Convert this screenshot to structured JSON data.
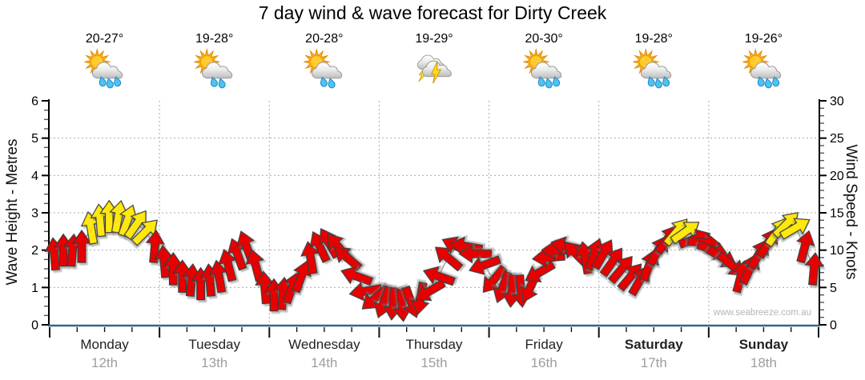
{
  "title": "7 day wind & wave forecast for Dirty Creek",
  "watermark": "www.seabreeze.com.au",
  "left_axis": {
    "label": "Wave Height - Metres",
    "ticks": [
      "0",
      "1",
      "2",
      "3",
      "4",
      "5",
      "6"
    ]
  },
  "right_axis": {
    "label": "Wind Speed - Knots",
    "ticks": [
      "0",
      "5",
      "10",
      "15",
      "20",
      "25",
      "30"
    ]
  },
  "days": [
    {
      "name": "Monday",
      "date": "12th",
      "temp": "20-27°",
      "icon": "showers",
      "drops": 3,
      "bold": false
    },
    {
      "name": "Tuesday",
      "date": "13th",
      "temp": "19-28°",
      "icon": "showers",
      "drops": 2,
      "bold": false
    },
    {
      "name": "Wednesday",
      "date": "14th",
      "temp": "20-28°",
      "icon": "showers",
      "drops": 2,
      "bold": false
    },
    {
      "name": "Thursday",
      "date": "15th",
      "temp": "19-29°",
      "icon": "storm",
      "drops": 0,
      "bold": false
    },
    {
      "name": "Friday",
      "date": "16th",
      "temp": "20-30°",
      "icon": "showers",
      "drops": 3,
      "bold": false
    },
    {
      "name": "Saturday",
      "date": "17th",
      "temp": "19-28°",
      "icon": "showers",
      "drops": 3,
      "bold": true
    },
    {
      "name": "Sunday",
      "date": "18th",
      "temp": "19-26°",
      "icon": "showers",
      "drops": 3,
      "bold": true
    }
  ],
  "colors": {
    "arrow_red": "#e80000",
    "arrow_yellow": "#ffe80a",
    "arrow_outline": "#3a3a3a",
    "baseline_blue": "#336688",
    "grid": "#aaaaaa",
    "trend_line": "#9b9b9b",
    "day_label": "#222222",
    "date_label": "#9e9e9e"
  },
  "chart_data": {
    "type": "wind-arrow-series",
    "title": "7 day wind & wave forecast for Dirty Creek",
    "categories": [
      "Monday 12th",
      "Tuesday 13th",
      "Wednesday 14th",
      "Thursday 15th",
      "Friday 16th",
      "Saturday 17th",
      "Sunday 18th"
    ],
    "left_axis": {
      "label": "Wave Height - Metres",
      "range": [
        0,
        6
      ],
      "gridlines_at": [
        1,
        2,
        3,
        4,
        5
      ]
    },
    "right_axis": {
      "label": "Wind Speed - Knots",
      "range": [
        0,
        30
      ],
      "gridlines_at": [
        5,
        10,
        15,
        20,
        25
      ]
    },
    "x_axis": "7 days, one arrow every 2 hours starting hour 1; vertical dotted gridline at each day boundary",
    "arrow_color_rule": "yellow when speed >= 12.5 knots, otherwise red",
    "direction_convention": "degrees, 0 = arrow points up (screen north), positive clockwise",
    "start_hour": 1,
    "step_hours": 2,
    "points_kn_dir": [
      [
        9.5,
        -5
      ],
      [
        10,
        0
      ],
      [
        10,
        5
      ],
      [
        10.5,
        0
      ],
      [
        13,
        -10
      ],
      [
        14,
        -5
      ],
      [
        14.5,
        0
      ],
      [
        14.5,
        10
      ],
      [
        14,
        20
      ],
      [
        13.5,
        35
      ],
      [
        12.5,
        45
      ],
      [
        10.5,
        5
      ],
      [
        8.5,
        -5
      ],
      [
        7.5,
        0
      ],
      [
        6.5,
        0
      ],
      [
        6,
        5
      ],
      [
        5.5,
        0
      ],
      [
        6,
        -5
      ],
      [
        6.5,
        -10
      ],
      [
        8,
        -15
      ],
      [
        9.5,
        -20
      ],
      [
        10.5,
        -20
      ],
      [
        8,
        -15
      ],
      [
        5,
        -5
      ],
      [
        4,
        0
      ],
      [
        4.2,
        5
      ],
      [
        5,
        20
      ],
      [
        6.5,
        20
      ],
      [
        9,
        -10
      ],
      [
        10.5,
        -25
      ],
      [
        11,
        -30
      ],
      [
        10.5,
        -40
      ],
      [
        9,
        -50
      ],
      [
        6.5,
        -70
      ],
      [
        4.5,
        -100
      ],
      [
        3.5,
        -130
      ],
      [
        3,
        -160
      ],
      [
        2.8,
        -175
      ],
      [
        2.6,
        175
      ],
      [
        3,
        160
      ],
      [
        3.5,
        -170
      ],
      [
        4.5,
        -120
      ],
      [
        6.5,
        -70
      ],
      [
        9,
        -50
      ],
      [
        10.5,
        -65
      ],
      [
        10.5,
        -80
      ],
      [
        9.5,
        -90
      ],
      [
        8,
        -110
      ],
      [
        6,
        -140
      ],
      [
        5,
        -160
      ],
      [
        4.5,
        -175
      ],
      [
        4.5,
        175
      ],
      [
        5,
        -155
      ],
      [
        7,
        -120
      ],
      [
        9,
        -95
      ],
      [
        10,
        -90
      ],
      [
        10.5,
        -75
      ],
      [
        9.5,
        -45
      ],
      [
        9,
        -10
      ],
      [
        9.5,
        20
      ],
      [
        9.5,
        30
      ],
      [
        8.5,
        35
      ],
      [
        7.5,
        40
      ],
      [
        6.5,
        40
      ],
      [
        6,
        30
      ],
      [
        8,
        20
      ],
      [
        10,
        30
      ],
      [
        11.5,
        35
      ],
      [
        12.5,
        40
      ],
      [
        12.5,
        55
      ],
      [
        11.5,
        70
      ],
      [
        11,
        95
      ],
      [
        10,
        110
      ],
      [
        9,
        120
      ],
      [
        8,
        130
      ],
      [
        6.5,
        15
      ],
      [
        7.5,
        25
      ],
      [
        9.5,
        30
      ],
      [
        11,
        30
      ],
      [
        12.5,
        35
      ],
      [
        13.5,
        45
      ],
      [
        13,
        60
      ],
      [
        10.5,
        15
      ],
      [
        7.5,
        5
      ]
    ]
  }
}
